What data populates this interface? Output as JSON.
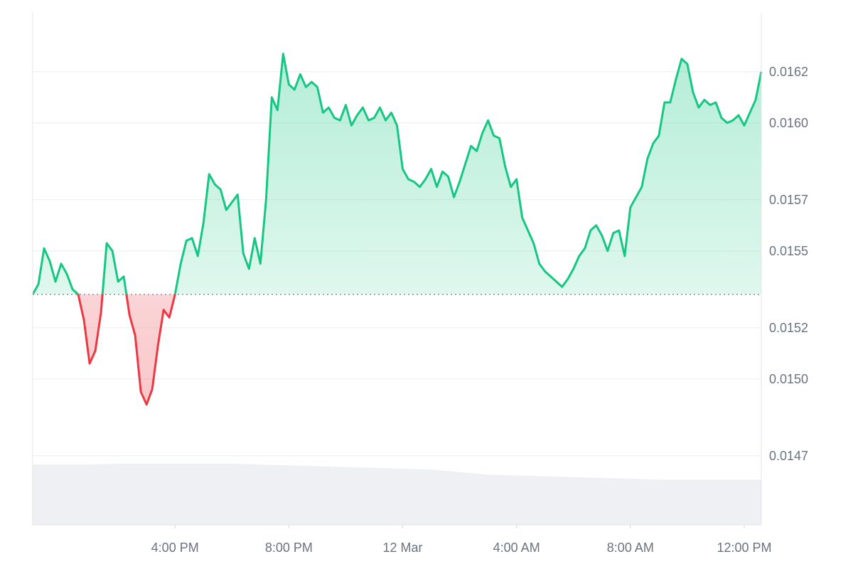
{
  "chart_data": {
    "type": "area",
    "title": "",
    "xlabel": "",
    "ylabel": "",
    "baseline": 0.01533,
    "ylim": [
      0.01443,
      0.01643
    ],
    "y_ticks": [
      0.0147,
      0.015,
      0.0152,
      0.0155,
      0.0157,
      0.016,
      0.0162
    ],
    "y_tick_labels": [
      "0.0147",
      "0.0150",
      "0.0152",
      "0.0155",
      "0.0157",
      "0.0160",
      "0.0162"
    ],
    "x_range_hours": [
      11.0,
      36.6
    ],
    "x_ticks": [
      {
        "t": 16,
        "label": "4:00 PM"
      },
      {
        "t": 20,
        "label": "8:00 PM"
      },
      {
        "t": 24,
        "label": "12 Mar"
      },
      {
        "t": 28,
        "label": "4:00 AM"
      },
      {
        "t": 32,
        "label": "8:00 AM"
      },
      {
        "t": 36,
        "label": "12:00 PM"
      }
    ],
    "colors": {
      "up": "#16c784",
      "down": "#ea3943",
      "volume": "#eef0f3",
      "grid": "#eceef1",
      "axis_text": "#6b7280"
    },
    "series": [
      {
        "role": "price",
        "points": [
          [
            11.0,
            0.01533
          ],
          [
            11.2,
            0.01537
          ],
          [
            11.4,
            0.01551
          ],
          [
            11.6,
            0.01546
          ],
          [
            11.8,
            0.01538
          ],
          [
            12.0,
            0.01545
          ],
          [
            12.2,
            0.01541
          ],
          [
            12.4,
            0.01535
          ],
          [
            12.6,
            0.01533
          ],
          [
            12.8,
            0.01523
          ],
          [
            13.0,
            0.01506
          ],
          [
            13.2,
            0.01511
          ],
          [
            13.4,
            0.01526
          ],
          [
            13.6,
            0.01553
          ],
          [
            13.8,
            0.0155
          ],
          [
            14.0,
            0.01538
          ],
          [
            14.2,
            0.0154
          ],
          [
            14.4,
            0.01525
          ],
          [
            14.6,
            0.01517
          ],
          [
            14.8,
            0.01495
          ],
          [
            15.0,
            0.0149
          ],
          [
            15.2,
            0.01496
          ],
          [
            15.4,
            0.01513
          ],
          [
            15.6,
            0.01527
          ],
          [
            15.8,
            0.01524
          ],
          [
            16.0,
            0.01533
          ],
          [
            16.2,
            0.01545
          ],
          [
            16.4,
            0.01554
          ],
          [
            16.6,
            0.01555
          ],
          [
            16.8,
            0.01548
          ],
          [
            17.0,
            0.01561
          ],
          [
            17.2,
            0.0158
          ],
          [
            17.4,
            0.01576
          ],
          [
            17.6,
            0.01574
          ],
          [
            17.8,
            0.01566
          ],
          [
            18.0,
            0.01569
          ],
          [
            18.2,
            0.01572
          ],
          [
            18.4,
            0.01549
          ],
          [
            18.6,
            0.01543
          ],
          [
            18.8,
            0.01555
          ],
          [
            19.0,
            0.01545
          ],
          [
            19.2,
            0.0157
          ],
          [
            19.4,
            0.0161
          ],
          [
            19.6,
            0.01605
          ],
          [
            19.8,
            0.01627
          ],
          [
            20.0,
            0.01615
          ],
          [
            20.2,
            0.01613
          ],
          [
            20.4,
            0.01619
          ],
          [
            20.6,
            0.01614
          ],
          [
            20.8,
            0.01616
          ],
          [
            21.0,
            0.01614
          ],
          [
            21.2,
            0.01604
          ],
          [
            21.4,
            0.01606
          ],
          [
            21.6,
            0.01602
          ],
          [
            21.8,
            0.01601
          ],
          [
            22.0,
            0.01607
          ],
          [
            22.2,
            0.01599
          ],
          [
            22.4,
            0.01603
          ],
          [
            22.6,
            0.01606
          ],
          [
            22.8,
            0.01601
          ],
          [
            23.0,
            0.01602
          ],
          [
            23.2,
            0.01606
          ],
          [
            23.4,
            0.01601
          ],
          [
            23.6,
            0.01604
          ],
          [
            23.8,
            0.01599
          ],
          [
            24.0,
            0.01582
          ],
          [
            24.2,
            0.01578
          ],
          [
            24.4,
            0.01577
          ],
          [
            24.6,
            0.01575
          ],
          [
            24.8,
            0.01578
          ],
          [
            25.0,
            0.01582
          ],
          [
            25.2,
            0.01575
          ],
          [
            25.4,
            0.01581
          ],
          [
            25.6,
            0.01579
          ],
          [
            25.8,
            0.01571
          ],
          [
            26.0,
            0.01577
          ],
          [
            26.2,
            0.01584
          ],
          [
            26.4,
            0.01591
          ],
          [
            26.6,
            0.01589
          ],
          [
            26.8,
            0.01596
          ],
          [
            27.0,
            0.01601
          ],
          [
            27.2,
            0.01595
          ],
          [
            27.4,
            0.01594
          ],
          [
            27.6,
            0.01583
          ],
          [
            27.8,
            0.01575
          ],
          [
            28.0,
            0.01578
          ],
          [
            28.2,
            0.01563
          ],
          [
            28.4,
            0.01558
          ],
          [
            28.6,
            0.01553
          ],
          [
            28.8,
            0.01545
          ],
          [
            29.0,
            0.01542
          ],
          [
            29.2,
            0.0154
          ],
          [
            29.4,
            0.01538
          ],
          [
            29.6,
            0.01536
          ],
          [
            29.8,
            0.01539
          ],
          [
            30.0,
            0.01543
          ],
          [
            30.2,
            0.01548
          ],
          [
            30.4,
            0.01551
          ],
          [
            30.6,
            0.01558
          ],
          [
            30.8,
            0.0156
          ],
          [
            31.0,
            0.01556
          ],
          [
            31.2,
            0.0155
          ],
          [
            31.4,
            0.01557
          ],
          [
            31.6,
            0.01558
          ],
          [
            31.8,
            0.01548
          ],
          [
            32.0,
            0.01567
          ],
          [
            32.2,
            0.01571
          ],
          [
            32.4,
            0.01575
          ],
          [
            32.6,
            0.01586
          ],
          [
            32.8,
            0.01592
          ],
          [
            33.0,
            0.01595
          ],
          [
            33.2,
            0.01608
          ],
          [
            33.4,
            0.01608
          ],
          [
            33.6,
            0.01617
          ],
          [
            33.8,
            0.01625
          ],
          [
            34.0,
            0.01623
          ],
          [
            34.2,
            0.01612
          ],
          [
            34.4,
            0.01606
          ],
          [
            34.6,
            0.01609
          ],
          [
            34.8,
            0.01607
          ],
          [
            35.0,
            0.01608
          ],
          [
            35.2,
            0.01602
          ],
          [
            35.4,
            0.016
          ],
          [
            35.6,
            0.01601
          ],
          [
            35.8,
            0.01603
          ],
          [
            36.0,
            0.01599
          ],
          [
            36.2,
            0.01604
          ],
          [
            36.4,
            0.01609
          ],
          [
            36.6,
            0.0162
          ]
        ]
      },
      {
        "role": "volume",
        "points": [
          [
            11.0,
            0.72
          ],
          [
            12.0,
            0.72
          ],
          [
            13.0,
            0.72
          ],
          [
            14.0,
            0.73
          ],
          [
            15.0,
            0.73
          ],
          [
            16.0,
            0.73
          ],
          [
            17.0,
            0.73
          ],
          [
            18.0,
            0.73
          ],
          [
            19.0,
            0.72
          ],
          [
            20.0,
            0.71
          ],
          [
            21.0,
            0.7
          ],
          [
            22.0,
            0.69
          ],
          [
            23.0,
            0.68
          ],
          [
            24.0,
            0.67
          ],
          [
            25.0,
            0.66
          ],
          [
            26.0,
            0.63
          ],
          [
            27.0,
            0.6
          ],
          [
            28.0,
            0.59
          ],
          [
            29.0,
            0.58
          ],
          [
            30.0,
            0.57
          ],
          [
            31.0,
            0.56
          ],
          [
            32.0,
            0.55
          ],
          [
            33.0,
            0.54
          ],
          [
            34.0,
            0.54
          ],
          [
            35.0,
            0.54
          ],
          [
            36.0,
            0.54
          ],
          [
            36.6,
            0.54
          ]
        ]
      }
    ]
  }
}
